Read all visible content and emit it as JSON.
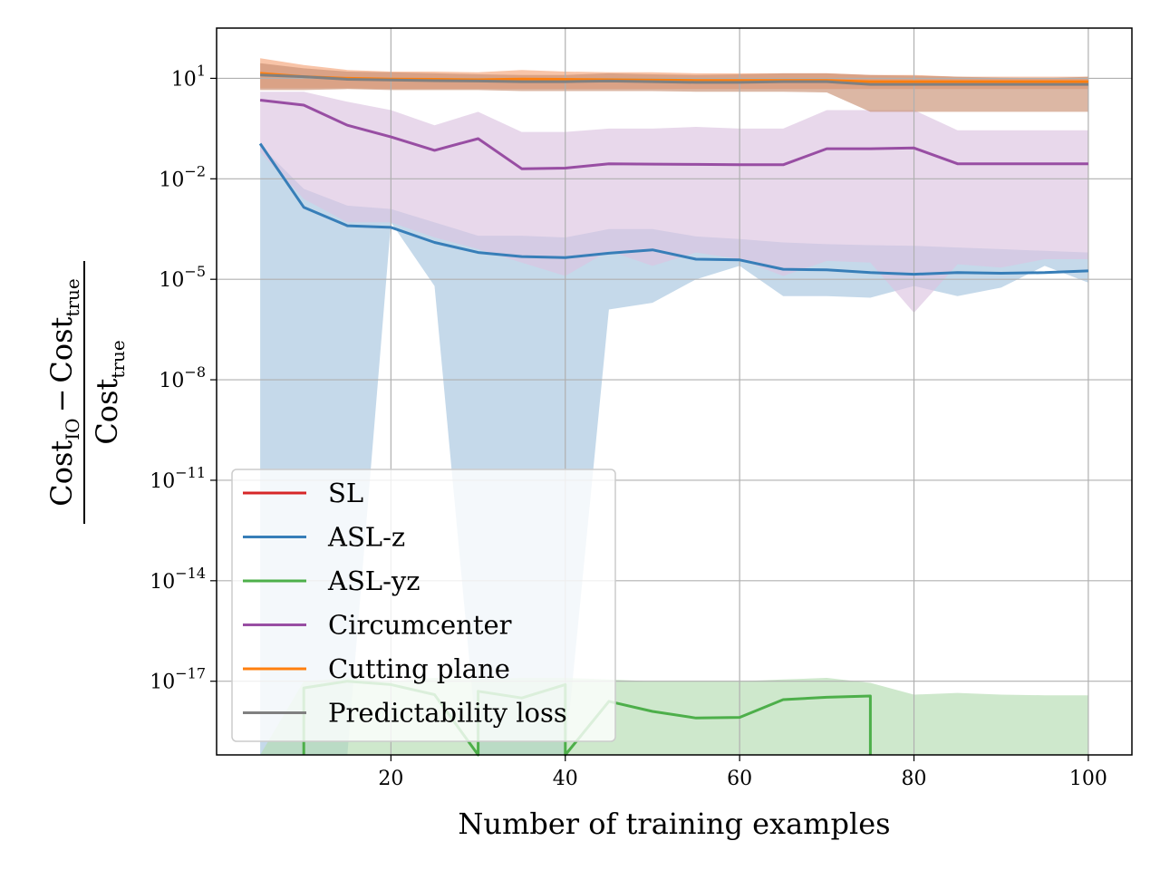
{
  "chart_data": {
    "type": "line",
    "title": "",
    "xlabel": "Number of training examples",
    "ylabel": {
      "numerator": "Cost_IO − Cost_true",
      "denominator": "Cost_true",
      "num_main_1": "Cost",
      "num_sub_1": "IO",
      "num_minus": "−",
      "num_main_2": "Cost",
      "num_sub_2": "true",
      "den_main": "Cost",
      "den_sub": "true"
    },
    "yscale": "log",
    "xlim": [
      0,
      105
    ],
    "ylim_exp": [
      -19.2,
      2.5
    ],
    "grid": true,
    "legend_position": "lower-left",
    "x_ticks": [
      {
        "value": 20,
        "label": "20"
      },
      {
        "value": 40,
        "label": "40"
      },
      {
        "value": 60,
        "label": "60"
      },
      {
        "value": 80,
        "label": "80"
      },
      {
        "value": 100,
        "label": "100"
      }
    ],
    "y_ticks": [
      {
        "exp": 1,
        "base": "10",
        "sup": "1"
      },
      {
        "exp": -2,
        "base": "10",
        "sup": "−2"
      },
      {
        "exp": -5,
        "base": "10",
        "sup": "−5"
      },
      {
        "exp": -8,
        "base": "10",
        "sup": "−8"
      },
      {
        "exp": -11,
        "base": "10",
        "sup": "−11"
      },
      {
        "exp": -14,
        "base": "10",
        "sup": "−14"
      },
      {
        "exp": -17,
        "base": "10",
        "sup": "−17"
      }
    ],
    "series": [
      {
        "name": "SL",
        "color": "#d62728",
        "x": [],
        "log10_y": [],
        "band": null
      },
      {
        "name": "ASL-z",
        "color": "#377eb8",
        "x": [
          5,
          10,
          15,
          20,
          25,
          30,
          35,
          40,
          45,
          50,
          55,
          60,
          65,
          70,
          75,
          80,
          85,
          90,
          95,
          100
        ],
        "log10_y": [
          -0.95,
          -2.85,
          -3.4,
          -3.45,
          -3.9,
          -4.2,
          -4.32,
          -4.35,
          -4.22,
          -4.12,
          -4.4,
          -4.42,
          -4.7,
          -4.72,
          -4.8,
          -4.85,
          -4.8,
          -4.82,
          -4.8,
          -4.75
        ],
        "band": {
          "color": "#a6c4df",
          "x": [
            5,
            10,
            15,
            20,
            25,
            30,
            35,
            40,
            45,
            50,
            55,
            60,
            65,
            70,
            75,
            80,
            85,
            90,
            95,
            100
          ],
          "log10_upper": [
            -1.0,
            -2.3,
            -2.8,
            -2.9,
            -3.3,
            -3.7,
            -3.7,
            -3.75,
            -3.5,
            -3.5,
            -3.72,
            -3.8,
            -3.9,
            -3.95,
            -3.98,
            -4.0,
            -4.05,
            -4.1,
            -4.15,
            -4.2
          ],
          "log10_lower": [
            -19.2,
            -19.2,
            -19.2,
            -3.3,
            -5.2,
            -19.2,
            -19.2,
            -19.2,
            -5.9,
            -5.7,
            -5.0,
            -4.6,
            -5.5,
            -5.5,
            -5.55,
            -5.2,
            -5.5,
            -5.25,
            -4.6,
            -5.1
          ]
        }
      },
      {
        "name": "ASL-yz",
        "color": "#4daf4a",
        "x": [
          10,
          10,
          15,
          20,
          25,
          30,
          30,
          35,
          40,
          40,
          45,
          50,
          55,
          60,
          65,
          70,
          75,
          75
        ],
        "log10_y": [
          -19.2,
          -17.2,
          -17.0,
          -17.1,
          -17.4,
          -19.2,
          -17.3,
          -17.5,
          -17.1,
          -19.2,
          -17.6,
          -17.9,
          -18.1,
          -18.08,
          -17.55,
          -17.48,
          -17.44,
          -19.2
        ],
        "band": {
          "color": "#b3dcb1",
          "x": [
            5,
            10,
            15,
            20,
            25,
            30,
            35,
            40,
            45,
            50,
            55,
            60,
            65,
            70,
            75,
            80,
            85,
            90,
            95,
            100
          ],
          "log10_upper": [
            -19.2,
            -17.0,
            -16.9,
            -17.0,
            -16.9,
            -16.95,
            -16.9,
            -16.9,
            -16.95,
            -17.0,
            -17.0,
            -17.0,
            -16.95,
            -16.9,
            -17.05,
            -17.4,
            -17.35,
            -17.4,
            -17.42,
            -17.42
          ],
          "log10_lower": [
            -19.2,
            -19.2,
            -19.2,
            -19.2,
            -19.2,
            -19.2,
            -19.2,
            -19.2,
            -19.2,
            -19.2,
            -19.2,
            -19.2,
            -19.2,
            -19.2,
            -19.2,
            -19.2,
            -19.2,
            -19.2,
            -19.2,
            -19.2
          ]
        }
      },
      {
        "name": "Circumcenter",
        "color": "#984ea3",
        "x": [
          5,
          10,
          15,
          20,
          25,
          30,
          35,
          40,
          45,
          50,
          55,
          60,
          65,
          70,
          75,
          80,
          85,
          90,
          95,
          100
        ],
        "log10_y": [
          0.35,
          0.2,
          -0.4,
          -0.75,
          -1.15,
          -0.8,
          -1.7,
          -1.68,
          -1.55,
          -1.56,
          -1.57,
          -1.58,
          -1.58,
          -1.1,
          -1.1,
          -1.08,
          -1.55,
          -1.55,
          -1.55,
          -1.55
        ],
        "band": {
          "color": "#dcc3e0",
          "x": [
            5,
            10,
            15,
            20,
            25,
            30,
            35,
            40,
            45,
            50,
            55,
            60,
            65,
            70,
            75,
            80,
            85,
            90,
            95,
            100
          ],
          "log10_upper": [
            0.6,
            0.6,
            0.3,
            0.05,
            -0.4,
            0.0,
            -0.6,
            -0.6,
            -0.5,
            -0.5,
            -0.45,
            -0.5,
            -0.5,
            0.05,
            0.05,
            0.05,
            -0.55,
            -0.55,
            -0.55,
            -0.55
          ],
          "log10_lower": [
            -1.2,
            -2.6,
            -3.3,
            -3.3,
            -3.75,
            -4.1,
            -4.5,
            -4.9,
            -4.15,
            -4.6,
            -4.2,
            -4.4,
            -4.9,
            -4.45,
            -4.5,
            -6.0,
            -4.55,
            -4.65,
            -4.4,
            -4.4
          ]
        }
      },
      {
        "name": "Cutting plane",
        "color": "#ff7f0e",
        "x": [
          5,
          10,
          15,
          20,
          25,
          30,
          35,
          40,
          45,
          50,
          55,
          60,
          65,
          70,
          75,
          80,
          85,
          90,
          95,
          100
        ],
        "log10_y": [
          1.15,
          1.05,
          1.0,
          0.98,
          0.97,
          0.96,
          0.98,
          0.97,
          0.96,
          0.95,
          0.94,
          0.94,
          0.94,
          0.94,
          0.9,
          0.9,
          0.9,
          0.9,
          0.9,
          0.9
        ],
        "band": {
          "color": "#f4a47a",
          "x": [
            5,
            10,
            15,
            20,
            25,
            30,
            35,
            40,
            45,
            50,
            55,
            60,
            65,
            70,
            75,
            80,
            85,
            90,
            95,
            100
          ],
          "log10_upper": [
            1.6,
            1.4,
            1.25,
            1.2,
            1.2,
            1.18,
            1.25,
            1.2,
            1.18,
            1.18,
            1.15,
            1.15,
            1.15,
            1.15,
            1.1,
            1.1,
            1.05,
            1.05,
            1.05,
            1.05
          ],
          "log10_lower": [
            0.7,
            0.7,
            0.7,
            0.68,
            0.68,
            0.68,
            0.68,
            0.68,
            0.68,
            0.68,
            0.68,
            0.68,
            0.68,
            0.68,
            0.68,
            0.68,
            0.68,
            0.68,
            0.68,
            0.68
          ]
        }
      },
      {
        "name": "Predictability loss",
        "color": "#808080",
        "x": [
          5,
          10,
          15,
          20,
          25,
          30,
          35,
          40,
          45,
          50,
          55,
          60,
          65,
          70,
          75,
          80,
          85,
          90,
          95,
          100
        ],
        "log10_y": [
          1.1,
          1.05,
          0.97,
          0.95,
          0.93,
          0.92,
          0.9,
          0.9,
          0.92,
          0.9,
          0.88,
          0.88,
          0.9,
          0.9,
          0.82,
          0.82,
          0.82,
          0.82,
          0.82,
          0.82
        ],
        "band": {
          "color": "#c99073",
          "x": [
            5,
            10,
            15,
            20,
            25,
            30,
            35,
            40,
            45,
            50,
            55,
            60,
            65,
            70,
            75,
            80,
            85,
            90,
            95,
            100
          ],
          "log10_upper": [
            1.45,
            1.3,
            1.2,
            1.18,
            1.15,
            1.12,
            1.1,
            1.1,
            1.15,
            1.12,
            1.1,
            1.12,
            1.15,
            1.15,
            1.1,
            1.08,
            1.05,
            1.02,
            1.0,
            1.05
          ],
          "log10_lower": [
            0.65,
            0.65,
            0.68,
            0.65,
            0.65,
            0.65,
            0.62,
            0.62,
            0.62,
            0.62,
            0.6,
            0.6,
            0.6,
            0.58,
            0.0,
            0.0,
            0.0,
            0.0,
            0.0,
            0.0
          ]
        }
      }
    ]
  }
}
